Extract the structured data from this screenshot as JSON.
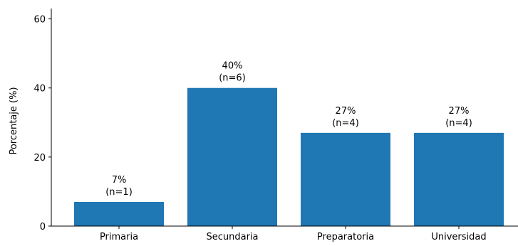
{
  "chart_data": {
    "type": "bar",
    "title": "",
    "xlabel": "",
    "ylabel": "Porcentaje (%)",
    "ylim": [
      0,
      63
    ],
    "yticks": [
      0,
      20,
      40,
      60
    ],
    "grid": false,
    "categories": [
      "Primaria",
      "Secundaria",
      "Preparatoria",
      "Universidad"
    ],
    "values": [
      7,
      40,
      27,
      27
    ],
    "bar_labels": [
      [
        "7%",
        "(n=1)"
      ],
      [
        "40%",
        "(n=6)"
      ],
      [
        "27%",
        "(n=4)"
      ],
      [
        "27%",
        "(n=4)"
      ]
    ],
    "bar_color": "#1f77b4"
  }
}
